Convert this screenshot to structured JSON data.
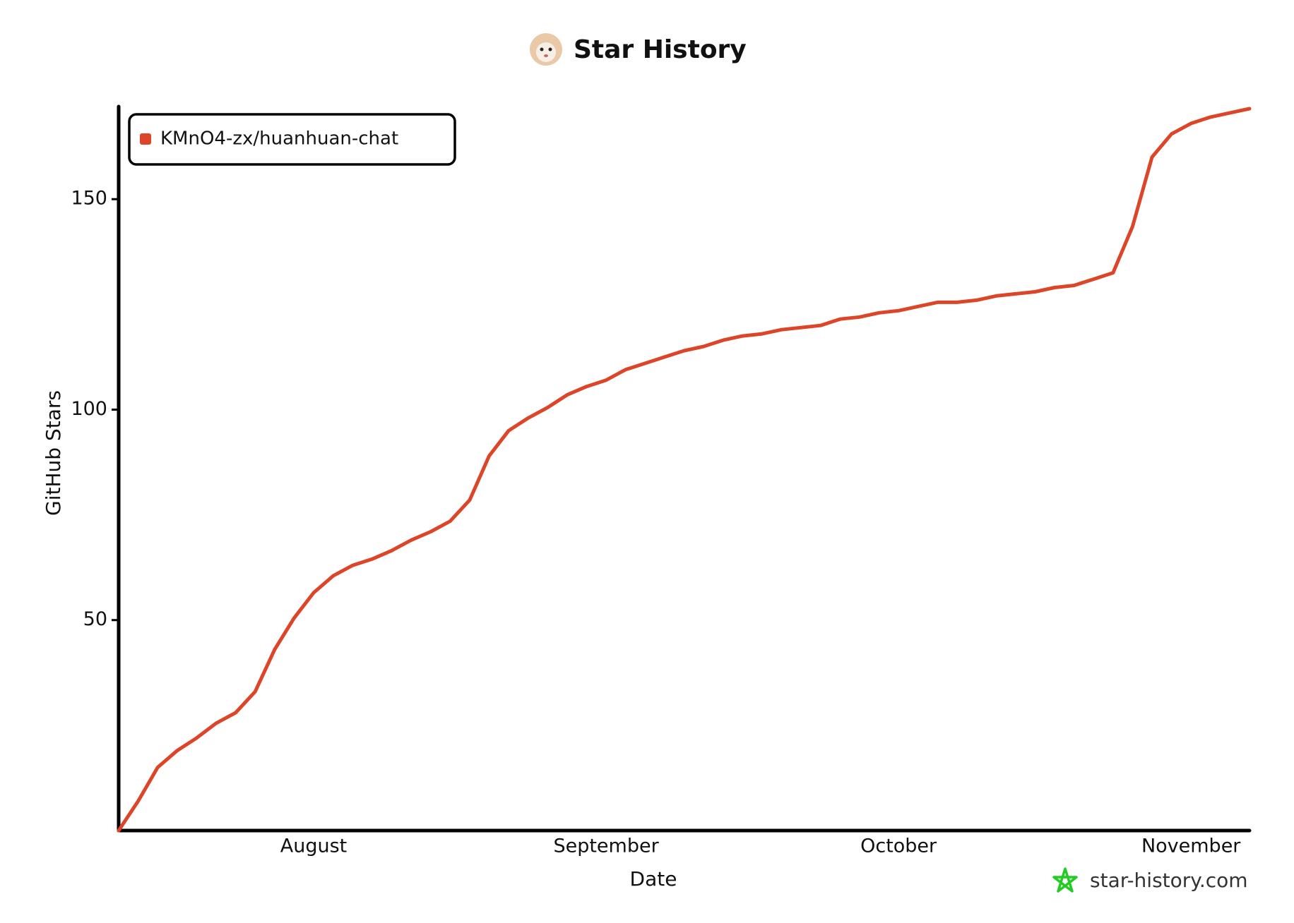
{
  "chart_data": {
    "type": "line",
    "title": "Star History",
    "xlabel": "Date",
    "ylabel": "GitHub Stars",
    "watermark": "star-history.com",
    "categories": [
      null,
      null,
      null,
      null,
      null,
      null,
      null,
      null,
      null,
      null,
      "August",
      null,
      null,
      null,
      null,
      null,
      null,
      null,
      null,
      null,
      null,
      null,
      null,
      null,
      null,
      "September",
      null,
      null,
      null,
      null,
      null,
      null,
      null,
      null,
      null,
      null,
      null,
      null,
      null,
      null,
      "October",
      null,
      null,
      null,
      null,
      null,
      null,
      null,
      null,
      null,
      null,
      null,
      null,
      null,
      null,
      "November",
      null,
      null,
      null
    ],
    "series": [
      {
        "name": "KMnO4-zx/huanhuan-chat",
        "color": "#dd4528",
        "values": [
          0,
          7,
          15,
          19,
          22,
          25.5,
          28,
          33,
          43,
          50.5,
          56.5,
          60.5,
          63,
          64.5,
          66.5,
          69,
          71,
          73.5,
          78.5,
          89,
          95,
          98,
          100.5,
          103.5,
          105.5,
          107,
          109.5,
          111,
          112.5,
          114,
          115,
          116.5,
          117.5,
          118,
          119,
          119.5,
          120,
          121.5,
          122,
          123,
          123.5,
          124.5,
          125.5,
          125.5,
          126,
          127,
          127.5,
          128,
          129,
          129.5,
          131,
          132.5,
          143.5,
          160,
          165.5,
          168,
          169.5,
          170.5,
          171.5
        ]
      }
    ],
    "ylim": [
      0,
      172
    ],
    "yticks": [
      50,
      100,
      150
    ],
    "legend": "upper left"
  }
}
